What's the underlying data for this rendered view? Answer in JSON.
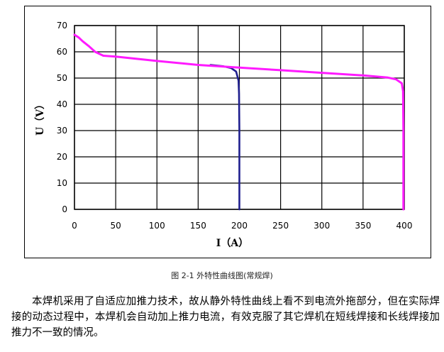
{
  "chart_data": {
    "type": "line",
    "title": "",
    "xlabel": "I（A）",
    "ylabel": "U（V）",
    "xlim": [
      0,
      400
    ],
    "ylim": [
      0,
      70
    ],
    "x_ticks": [
      0,
      50,
      100,
      150,
      200,
      250,
      300,
      350,
      400
    ],
    "y_ticks": [
      0,
      10,
      20,
      30,
      40,
      50,
      60,
      70
    ],
    "grid": true,
    "series": [
      {
        "color": "#1f1f8f",
        "points": [
          [
            165,
            55
          ],
          [
            180,
            54.5
          ],
          [
            190,
            53.8
          ],
          [
            196,
            52.5
          ],
          [
            199,
            49
          ],
          [
            199.6,
            44
          ],
          [
            200,
            30
          ],
          [
            200,
            0
          ]
        ]
      },
      {
        "color": "#ff1aff",
        "points": [
          [
            0,
            66.5
          ],
          [
            5,
            65.5
          ],
          [
            10,
            64
          ],
          [
            18,
            62
          ],
          [
            25,
            60
          ],
          [
            35,
            58.5
          ],
          [
            50,
            58.2
          ],
          [
            100,
            56.5
          ],
          [
            150,
            55
          ],
          [
            200,
            54
          ],
          [
            250,
            53
          ],
          [
            300,
            52
          ],
          [
            350,
            51
          ],
          [
            380,
            50.2
          ],
          [
            390,
            49.5
          ],
          [
            397,
            48
          ],
          [
            398.5,
            45
          ],
          [
            399,
            30
          ],
          [
            399,
            0
          ]
        ]
      }
    ]
  },
  "caption": "图 2-1  外特性曲线图(常规焊)",
  "paragraph": "本焊机采用了自适应加推力技术，故从静外特性曲线上看不到电流外拖部分，但在实际焊接的动态过程中，本焊机会自动加上推力电流，有效克服了其它焊机在短线焊接和长线焊接加推力不一致的情况。"
}
